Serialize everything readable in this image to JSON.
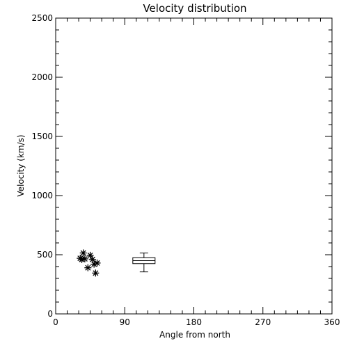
{
  "chart_data": {
    "type": "scatter",
    "title": "Velocity distribution",
    "xlabel": "Angle from north",
    "ylabel": "Velocity (km/s)",
    "xlim": [
      0,
      360
    ],
    "ylim": [
      0,
      2500
    ],
    "xticks": [
      0,
      90,
      180,
      270,
      360
    ],
    "yticks": [
      0,
      500,
      1000,
      1500,
      2000,
      2500
    ],
    "xtick_labels": [
      "0",
      "90",
      "180",
      "270",
      "360"
    ],
    "ytick_labels": [
      "0",
      "500",
      "1000",
      "1500",
      "2000",
      "2500"
    ],
    "grid": false,
    "marker": "asterisk",
    "points": [
      {
        "x": 32,
        "y": 470
      },
      {
        "x": 34,
        "y": 460
      },
      {
        "x": 36,
        "y": 515
      },
      {
        "x": 38,
        "y": 465
      },
      {
        "x": 42,
        "y": 390
      },
      {
        "x": 45,
        "y": 495
      },
      {
        "x": 48,
        "y": 460
      },
      {
        "x": 50,
        "y": 420
      },
      {
        "x": 52,
        "y": 345
      },
      {
        "x": 54,
        "y": 430
      }
    ],
    "boxplot": {
      "x": 115,
      "min": 355,
      "q1": 425,
      "median": 450,
      "q3": 475,
      "max": 515
    }
  }
}
